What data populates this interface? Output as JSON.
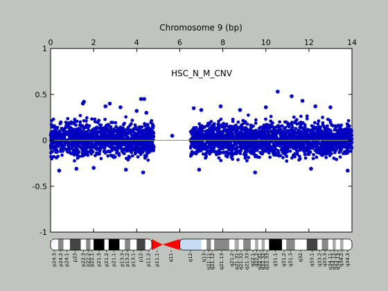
{
  "chart_data": {
    "type": "scatter",
    "title": "Chromosome 9 (bp)",
    "series_label": "HSC_N_M_CNV",
    "xlim": [
      0,
      14
    ],
    "ylim": [
      -1,
      1
    ],
    "x_ticks": [
      "0",
      "2",
      "4",
      "6",
      "8",
      "10",
      "12",
      "14"
    ],
    "y_ticks": [
      "1",
      "0.5",
      "0",
      "-0.5",
      "-1"
    ],
    "grid": false,
    "point_color": "#0000c0",
    "baseline_color": "#888888",
    "dense_segments": [
      {
        "x_start": 0.0,
        "x_end": 4.8,
        "y_core": [
          -0.2,
          0.22
        ]
      },
      {
        "x_start": 6.5,
        "x_end": 14.0,
        "y_core": [
          -0.2,
          0.22
        ]
      }
    ],
    "outliers": [
      {
        "x": 1.5,
        "y": 0.4
      },
      {
        "x": 1.55,
        "y": 0.42
      },
      {
        "x": 2.55,
        "y": 0.37
      },
      {
        "x": 2.75,
        "y": 0.4
      },
      {
        "x": 3.25,
        "y": 0.36
      },
      {
        "x": 4.0,
        "y": 0.32
      },
      {
        "x": 4.2,
        "y": 0.45
      },
      {
        "x": 4.35,
        "y": 0.45
      },
      {
        "x": 4.45,
        "y": 0.3
      },
      {
        "x": 5.65,
        "y": 0.05
      },
      {
        "x": 6.65,
        "y": 0.35
      },
      {
        "x": 7.0,
        "y": 0.33
      },
      {
        "x": 7.9,
        "y": 0.37
      },
      {
        "x": 8.8,
        "y": 0.33
      },
      {
        "x": 10.0,
        "y": 0.36
      },
      {
        "x": 10.55,
        "y": 0.53
      },
      {
        "x": 11.2,
        "y": 0.48
      },
      {
        "x": 11.7,
        "y": 0.43
      },
      {
        "x": 12.3,
        "y": 0.37
      },
      {
        "x": 13.0,
        "y": 0.36
      },
      {
        "x": 0.4,
        "y": -0.33
      },
      {
        "x": 1.2,
        "y": -0.31
      },
      {
        "x": 2.0,
        "y": -0.3
      },
      {
        "x": 3.5,
        "y": -0.32
      },
      {
        "x": 4.3,
        "y": -0.35
      },
      {
        "x": 6.9,
        "y": -0.32
      },
      {
        "x": 9.5,
        "y": -0.35
      },
      {
        "x": 12.1,
        "y": -0.31
      },
      {
        "x": 13.8,
        "y": -0.33
      }
    ],
    "ideogram": {
      "bands": [
        {
          "label": "p24.3",
          "x0": 0.0,
          "x1": 0.35,
          "color": "#ffffff"
        },
        {
          "label": "p24.2",
          "x0": 0.35,
          "x1": 0.6,
          "color": "#888888"
        },
        {
          "label": "p24.1",
          "x0": 0.6,
          "x1": 0.9,
          "color": "#ffffff"
        },
        {
          "label": "p23",
          "x0": 0.9,
          "x1": 1.4,
          "color": "#444444"
        },
        {
          "label": "p22.3",
          "x0": 1.4,
          "x1": 1.65,
          "color": "#ffffff"
        },
        {
          "label": "p22.2",
          "x0": 1.65,
          "x1": 1.85,
          "color": "#888888"
        },
        {
          "label": "p22.1",
          "x0": 1.85,
          "x1": 2.0,
          "color": "#ffffff"
        },
        {
          "label": "p21.3",
          "x0": 2.0,
          "x1": 2.5,
          "color": "#000000"
        },
        {
          "label": "p21.2",
          "x0": 2.5,
          "x1": 2.7,
          "color": "#ffffff"
        },
        {
          "label": "p21.1",
          "x0": 2.7,
          "x1": 3.2,
          "color": "#000000"
        },
        {
          "label": "p13.3",
          "x0": 3.2,
          "x1": 3.45,
          "color": "#ffffff"
        },
        {
          "label": "p13.2",
          "x0": 3.45,
          "x1": 3.7,
          "color": "#888888"
        },
        {
          "label": "p13.1",
          "x0": 3.7,
          "x1": 4.0,
          "color": "#ffffff"
        },
        {
          "label": "p12",
          "x0": 4.0,
          "x1": 4.4,
          "color": "#444444"
        },
        {
          "label": "p11.2",
          "x0": 4.4,
          "x1": 4.7,
          "color": "#ffffff"
        },
        {
          "label": "p11.1",
          "x0": 4.7,
          "x1": 5.2,
          "color": "#ff0000",
          "shape": "centromere-p"
        },
        {
          "label": "q11",
          "x0": 5.2,
          "x1": 6.0,
          "color": "#ff0000",
          "shape": "centromere-q"
        },
        {
          "label": "q12",
          "x0": 6.0,
          "x1": 7.0,
          "color": "#c6dcf5"
        },
        {
          "label": "q13",
          "x0": 7.0,
          "x1": 7.25,
          "color": "#ffffff"
        },
        {
          "label": "q21.11",
          "x0": 7.25,
          "x1": 7.45,
          "color": "#888888"
        },
        {
          "label": "q21.12",
          "x0": 7.45,
          "x1": 7.6,
          "color": "#ffffff"
        },
        {
          "label": "q21.13",
          "x0": 7.6,
          "x1": 8.3,
          "color": "#888888"
        },
        {
          "label": "q21.2",
          "x0": 8.3,
          "x1": 8.55,
          "color": "#ffffff"
        },
        {
          "label": "q21.31",
          "x0": 8.55,
          "x1": 8.75,
          "color": "#aaaaaa"
        },
        {
          "label": "q21.32",
          "x0": 8.75,
          "x1": 8.95,
          "color": "#ffffff"
        },
        {
          "label": "q21.33",
          "x0": 8.95,
          "x1": 9.3,
          "color": "#888888"
        },
        {
          "label": "q22.1",
          "x0": 9.3,
          "x1": 9.5,
          "color": "#ffffff"
        },
        {
          "label": "q22.2",
          "x0": 9.5,
          "x1": 9.65,
          "color": "#aaaaaa"
        },
        {
          "label": "q22.31",
          "x0": 9.65,
          "x1": 9.8,
          "color": "#ffffff"
        },
        {
          "label": "q22.32",
          "x0": 9.8,
          "x1": 9.95,
          "color": "#aaaaaa"
        },
        {
          "label": "q22.33",
          "x0": 9.95,
          "x1": 10.15,
          "color": "#ffffff"
        },
        {
          "label": "q31.1",
          "x0": 10.15,
          "x1": 10.75,
          "color": "#000000"
        },
        {
          "label": "q31.2",
          "x0": 10.75,
          "x1": 10.95,
          "color": "#ffffff"
        },
        {
          "label": "q31.3",
          "x0": 10.95,
          "x1": 11.35,
          "color": "#888888"
        },
        {
          "label": "q32",
          "x0": 11.35,
          "x1": 11.9,
          "color": "#ffffff"
        },
        {
          "label": "q33.1",
          "x0": 11.9,
          "x1": 12.4,
          "color": "#444444"
        },
        {
          "label": "q33.2",
          "x0": 12.4,
          "x1": 12.6,
          "color": "#ffffff"
        },
        {
          "label": "q33.3",
          "x0": 12.6,
          "x1": 12.9,
          "color": "#888888"
        },
        {
          "label": "q34.11",
          "x0": 12.9,
          "x1": 13.1,
          "color": "#ffffff"
        },
        {
          "label": "q34.12",
          "x0": 13.1,
          "x1": 13.25,
          "color": "#aaaaaa"
        },
        {
          "label": "q34.13",
          "x0": 13.25,
          "x1": 13.45,
          "color": "#ffffff"
        },
        {
          "label": "q34.2",
          "x0": 13.45,
          "x1": 13.6,
          "color": "#aaaaaa"
        },
        {
          "label": "q34.3",
          "x0": 13.6,
          "x1": 14.0,
          "color": "#ffffff"
        }
      ]
    }
  }
}
